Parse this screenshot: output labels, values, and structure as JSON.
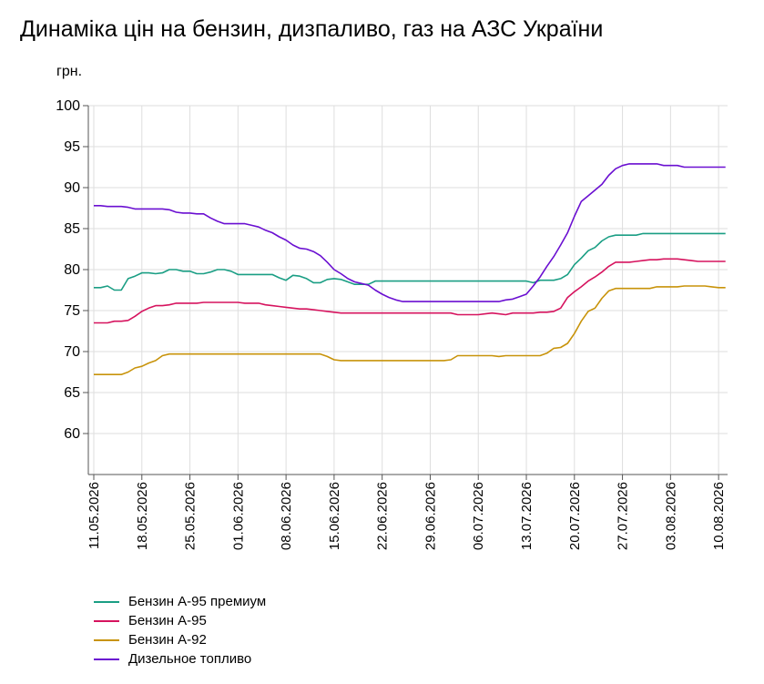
{
  "title": "Динаміка цін на бензин, дизпаливо, газ на АЗС України",
  "chart_data": {
    "type": "line",
    "ylabel": "грн.",
    "ylim": [
      55,
      100
    ],
    "yticks": [
      60,
      65,
      70,
      75,
      80,
      85,
      90,
      95,
      100
    ],
    "grid": true,
    "legend_position": "bottom-left",
    "x": [
      "11.05.2026",
      "12.05.2026",
      "13.05.2026",
      "14.05.2026",
      "15.05.2026",
      "16.05.2026",
      "17.05.2026",
      "18.05.2026",
      "19.05.2026",
      "20.05.2026",
      "21.05.2026",
      "22.05.2026",
      "23.05.2026",
      "24.05.2026",
      "25.05.2026",
      "26.05.2026",
      "27.05.2026",
      "28.05.2026",
      "29.05.2026",
      "30.05.2026",
      "31.05.2026",
      "01.06.2026",
      "02.06.2026",
      "03.06.2026",
      "04.06.2026",
      "05.06.2026",
      "06.06.2026",
      "07.06.2026",
      "08.06.2026",
      "09.06.2026",
      "10.06.2026",
      "11.06.2026",
      "12.06.2026",
      "13.06.2026",
      "14.06.2026",
      "15.06.2026",
      "16.06.2026",
      "17.06.2026",
      "18.06.2026",
      "19.06.2026",
      "20.06.2026",
      "21.06.2026",
      "22.06.2026",
      "23.06.2026",
      "24.06.2026",
      "25.06.2026",
      "26.06.2026",
      "27.06.2026",
      "28.06.2026",
      "29.06.2026",
      "30.06.2026",
      "01.07.2026",
      "02.07.2026",
      "03.07.2026",
      "04.07.2026",
      "05.07.2026",
      "06.07.2026",
      "07.07.2026",
      "08.07.2026",
      "09.07.2026",
      "10.07.2026",
      "11.07.2026",
      "12.07.2026",
      "13.07.2026",
      "14.07.2026",
      "15.07.2026",
      "16.07.2026",
      "17.07.2026",
      "18.07.2026",
      "19.07.2026",
      "20.07.2026",
      "21.07.2026",
      "22.07.2026",
      "23.07.2026",
      "24.07.2026",
      "25.07.2026",
      "26.07.2026",
      "27.07.2026",
      "28.07.2026",
      "29.07.2026",
      "30.07.2026",
      "31.07.2026",
      "01.08.2026",
      "02.08.2026",
      "03.08.2026",
      "04.08.2026",
      "05.08.2026",
      "06.08.2026",
      "07.08.2026",
      "08.08.2026",
      "09.08.2026",
      "10.08.2026",
      "11.08.2026"
    ],
    "xtick_labels": [
      "11.05.2026",
      "18.05.2026",
      "25.05.2026",
      "01.06.2026",
      "08.06.2026",
      "15.06.2026",
      "22.06.2026",
      "29.06.2026",
      "06.07.2026",
      "13.07.2026",
      "20.07.2026",
      "27.07.2026",
      "03.08.2026",
      "10.08.2026"
    ],
    "series": [
      {
        "name": "Бензин А-95 премиум",
        "color": "#1a9e84",
        "values": [
          77.8,
          77.8,
          78.0,
          77.5,
          77.5,
          78.9,
          79.2,
          79.6,
          79.6,
          79.5,
          79.6,
          80.0,
          80.0,
          79.8,
          79.8,
          79.5,
          79.5,
          79.7,
          80.0,
          80.0,
          79.8,
          79.4,
          79.4,
          79.4,
          79.4,
          79.4,
          79.4,
          79.0,
          78.7,
          79.3,
          79.2,
          78.9,
          78.4,
          78.4,
          78.8,
          78.9,
          78.8,
          78.5,
          78.2,
          78.2,
          78.2,
          78.6,
          78.6,
          78.6,
          78.6,
          78.6,
          78.6,
          78.6,
          78.6,
          78.6,
          78.6,
          78.6,
          78.6,
          78.6,
          78.6,
          78.6,
          78.6,
          78.6,
          78.6,
          78.6,
          78.6,
          78.6,
          78.6,
          78.6,
          78.4,
          78.7,
          78.7,
          78.7,
          78.9,
          79.4,
          80.6,
          81.4,
          82.3,
          82.7,
          83.5,
          84.0,
          84.2,
          84.2,
          84.2,
          84.2,
          84.4,
          84.4,
          84.4,
          84.4,
          84.4,
          84.4,
          84.4,
          84.4,
          84.4,
          84.4,
          84.4,
          84.4,
          84.4
        ]
      },
      {
        "name": "Бензин А-95",
        "color": "#d6135e",
        "values": [
          73.5,
          73.5,
          73.5,
          73.7,
          73.7,
          73.8,
          74.3,
          74.9,
          75.3,
          75.6,
          75.6,
          75.7,
          75.9,
          75.9,
          75.9,
          75.9,
          76.0,
          76.0,
          76.0,
          76.0,
          76.0,
          76.0,
          75.9,
          75.9,
          75.9,
          75.7,
          75.6,
          75.5,
          75.4,
          75.3,
          75.2,
          75.2,
          75.1,
          75.0,
          74.9,
          74.8,
          74.7,
          74.7,
          74.7,
          74.7,
          74.7,
          74.7,
          74.7,
          74.7,
          74.7,
          74.7,
          74.7,
          74.7,
          74.7,
          74.7,
          74.7,
          74.7,
          74.7,
          74.5,
          74.5,
          74.5,
          74.5,
          74.6,
          74.7,
          74.6,
          74.5,
          74.7,
          74.7,
          74.7,
          74.7,
          74.8,
          74.8,
          74.9,
          75.3,
          76.6,
          77.3,
          77.9,
          78.6,
          79.1,
          79.7,
          80.4,
          80.9,
          80.9,
          80.9,
          81.0,
          81.1,
          81.2,
          81.2,
          81.3,
          81.3,
          81.3,
          81.2,
          81.1,
          81.0,
          81.0,
          81.0,
          81.0,
          81.0
        ]
      },
      {
        "name": "Бензин А-92",
        "color": "#c8930a",
        "values": [
          67.2,
          67.2,
          67.2,
          67.2,
          67.2,
          67.5,
          68.0,
          68.2,
          68.6,
          68.9,
          69.5,
          69.7,
          69.7,
          69.7,
          69.7,
          69.7,
          69.7,
          69.7,
          69.7,
          69.7,
          69.7,
          69.7,
          69.7,
          69.7,
          69.7,
          69.7,
          69.7,
          69.7,
          69.7,
          69.7,
          69.7,
          69.7,
          69.7,
          69.7,
          69.4,
          69.0,
          68.9,
          68.9,
          68.9,
          68.9,
          68.9,
          68.9,
          68.9,
          68.9,
          68.9,
          68.9,
          68.9,
          68.9,
          68.9,
          68.9,
          68.9,
          68.9,
          69.0,
          69.5,
          69.5,
          69.5,
          69.5,
          69.5,
          69.5,
          69.4,
          69.5,
          69.5,
          69.5,
          69.5,
          69.5,
          69.5,
          69.8,
          70.4,
          70.5,
          71.0,
          72.2,
          73.7,
          74.9,
          75.3,
          76.5,
          77.4,
          77.7,
          77.7,
          77.7,
          77.7,
          77.7,
          77.7,
          77.9,
          77.9,
          77.9,
          77.9,
          78.0,
          78.0,
          78.0,
          78.0,
          77.9,
          77.8,
          77.8
        ]
      },
      {
        "name": "Дизельное топливо",
        "color": "#6a0fd1",
        "values": [
          87.8,
          87.8,
          87.7,
          87.7,
          87.7,
          87.6,
          87.4,
          87.4,
          87.4,
          87.4,
          87.4,
          87.3,
          87.0,
          86.9,
          86.9,
          86.8,
          86.8,
          86.3,
          85.9,
          85.6,
          85.6,
          85.6,
          85.6,
          85.4,
          85.2,
          84.8,
          84.5,
          84.0,
          83.6,
          83.0,
          82.6,
          82.5,
          82.2,
          81.7,
          80.9,
          80.0,
          79.5,
          78.9,
          78.5,
          78.3,
          78.1,
          77.5,
          77.0,
          76.6,
          76.3,
          76.1,
          76.1,
          76.1,
          76.1,
          76.1,
          76.1,
          76.1,
          76.1,
          76.1,
          76.1,
          76.1,
          76.1,
          76.1,
          76.1,
          76.1,
          76.3,
          76.4,
          76.7,
          77.0,
          78.0,
          79.1,
          80.4,
          81.6,
          83.0,
          84.5,
          86.5,
          88.3,
          89.0,
          89.7,
          90.4,
          91.5,
          92.3,
          92.7,
          92.9,
          92.9,
          92.9,
          92.9,
          92.9,
          92.7,
          92.7,
          92.7,
          92.5,
          92.5,
          92.5,
          92.5,
          92.5,
          92.5,
          92.5
        ]
      }
    ]
  }
}
